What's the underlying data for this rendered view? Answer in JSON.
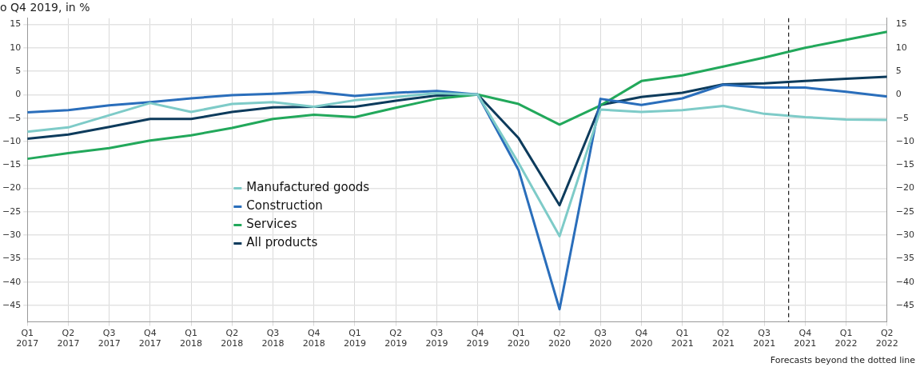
{
  "chart_data": {
    "type": "line",
    "title": "o Q4 2019, in %",
    "x": [
      "2017-01",
      "2017-04",
      "2017-07",
      "2017-10",
      "2018-01",
      "2018-04",
      "2018-07",
      "2018-10",
      "2019-01",
      "2019-04",
      "2019-07",
      "2019-10",
      "2020-01",
      "2020-04",
      "2020-07",
      "2020-10",
      "2021-01",
      "2021-04",
      "2021-07",
      "2021-10",
      "2022-01",
      "2022-04"
    ],
    "series": [
      {
        "name": "Manufactured goods",
        "color": "#7ecbc8",
        "values": [
          -7.9,
          -7.0,
          -4.4,
          -1.8,
          -3.7,
          -2.0,
          -1.6,
          -2.6,
          -1.2,
          -0.5,
          0.3,
          0,
          -14.6,
          -30.2,
          -3.2,
          -3.7,
          -3.3,
          -2.4,
          -4.1,
          -4.8,
          -5.3,
          -5.4
        ]
      },
      {
        "name": "Construction",
        "color": "#2a6ebb",
        "values": [
          -3.8,
          -3.3,
          -2.3,
          -1.6,
          -0.8,
          -0.1,
          0.2,
          0.6,
          -0.3,
          0.4,
          0.8,
          0,
          -16.1,
          -45.8,
          -0.9,
          -2.2,
          -0.8,
          2.1,
          1.5,
          1.5,
          0.6,
          -0.4
        ]
      },
      {
        "name": "Services",
        "color": "#22a85b",
        "values": [
          -13.7,
          -12.5,
          -11.4,
          -9.8,
          -8.7,
          -7.1,
          -5.2,
          -4.3,
          -4.8,
          -2.8,
          -0.9,
          0,
          -2.0,
          -6.4,
          -2.3,
          2.9,
          4.1,
          6.0,
          7.9,
          10.0,
          11.7,
          13.4
        ]
      },
      {
        "name": "All products",
        "color": "#0d3b5c",
        "values": [
          -9.4,
          -8.5,
          -6.9,
          -5.2,
          -5.2,
          -3.7,
          -2.7,
          -2.6,
          -2.6,
          -1.3,
          -0.2,
          0,
          -9.3,
          -23.6,
          -2.2,
          -0.5,
          0.4,
          2.2,
          2.4,
          2.9,
          3.4,
          3.8
        ]
      }
    ],
    "xlim": [
      "2017-01",
      "2022-04"
    ],
    "xticks": [
      {
        "value": "2017-01",
        "label": "Q1 2017"
      },
      {
        "value": "2017-04",
        "label": "Q2 2017"
      },
      {
        "value": "2017-07",
        "label": "Q3 2017"
      },
      {
        "value": "2017-10",
        "label": "Q4 2017"
      },
      {
        "value": "2018-01",
        "label": "Q1 2018"
      },
      {
        "value": "2018-04",
        "label": "Q2 2018"
      },
      {
        "value": "2018-07",
        "label": "Q3 2018"
      },
      {
        "value": "2018-10",
        "label": "Q4 2018"
      },
      {
        "value": "2019-01",
        "label": "Q1 2019"
      },
      {
        "value": "2019-04",
        "label": "Q2 2019"
      },
      {
        "value": "2019-07",
        "label": "Q3 2019"
      },
      {
        "value": "2019-10",
        "label": "Q4 2019"
      },
      {
        "value": "2020-01",
        "label": "Q1 2020"
      },
      {
        "value": "2020-04",
        "label": "Q2 2020"
      },
      {
        "value": "2020-07",
        "label": "Q3 2020"
      },
      {
        "value": "2020-10",
        "label": "Q4 2020"
      },
      {
        "value": "2021-01",
        "label": "Q1 2021"
      },
      {
        "value": "2021-04",
        "label": "Q2 2021"
      },
      {
        "value": "2021-07",
        "label": "Q3 2021"
      },
      {
        "value": "2021-10",
        "label": "Q4 2021"
      },
      {
        "value": "2022-01",
        "label": "Q1 2022"
      },
      {
        "value": "2022-04",
        "label": "Q2 2022"
      }
    ],
    "ylim": [
      -48.5,
      16.3
    ],
    "yticks": [
      -45,
      -40,
      -35,
      -30,
      -25,
      -20,
      -15,
      -10,
      -5,
      0,
      5,
      10,
      15
    ],
    "y2lim": [
      -48.5,
      16.3
    ],
    "y2ticks": [
      -45,
      -40,
      -35,
      -30,
      -25,
      -20,
      -15,
      -10,
      -5,
      0,
      5,
      10,
      15
    ],
    "ref_lines": [
      {
        "axis": "x",
        "value": "2021-08-25",
        "color": "#1a1a1a",
        "line_style": "dashed"
      }
    ],
    "annotations": [
      "Forecasts beyond the dotted line"
    ],
    "grid": true,
    "legend": "center left",
    "marker": "none",
    "line_style": "solid"
  }
}
